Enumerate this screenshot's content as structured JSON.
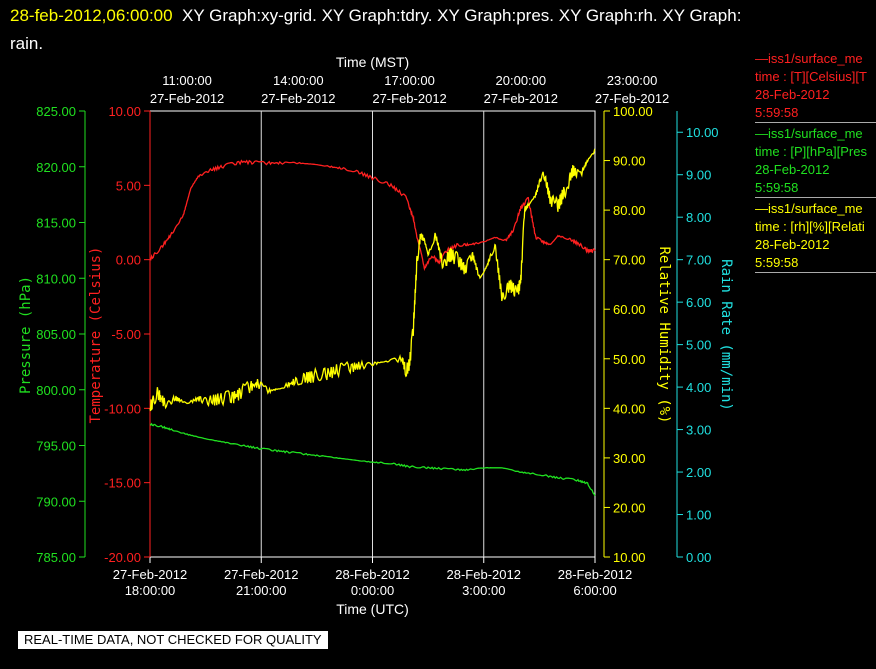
{
  "header": {
    "timestamp": "28-feb-2012,06:00:00",
    "graphs_line1": "XY Graph:xy-grid.  XY Graph:tdry.  XY Graph:pres.  XY Graph:rh.  XY Graph:",
    "graphs_line2": "rain."
  },
  "legend": [
    {
      "line1": "—iss1/surface_me",
      "line2": "time : [T][Celsius][T",
      "line3": "28-Feb-2012",
      "line4": "5:59:58",
      "color": "#ff2020"
    },
    {
      "line1": "—iss1/surface_me",
      "line2": "time : [P][hPa][Pres",
      "line3": "28-Feb-2012",
      "line4": "5:59:58",
      "color": "#20ff20"
    },
    {
      "line1": "—iss1/surface_me",
      "line2": "time : [rh][%][Relati",
      "line3": "28-Feb-2012",
      "line4": "5:59:58",
      "color": "#ffff00"
    }
  ],
  "footer": "REAL-TIME DATA, NOT CHECKED FOR QUALITY",
  "chart_data": {
    "type": "line",
    "top_axis_title": "Time (MST)",
    "bottom_axis_title": "Time (UTC)",
    "x_range_hours_utc": [
      0,
      12
    ],
    "top_ticks": [
      {
        "hour": 1,
        "line1": "11:00:00",
        "line2": "27-Feb-2012"
      },
      {
        "hour": 4,
        "line1": "14:00:00",
        "line2": "27-Feb-2012"
      },
      {
        "hour": 7,
        "line1": "17:00:00",
        "line2": "27-Feb-2012"
      },
      {
        "hour": 10,
        "line1": "20:00:00",
        "line2": "27-Feb-2012"
      },
      {
        "hour": 13,
        "line1": "23:00:00",
        "line2": "27-Feb-2012"
      }
    ],
    "bottom_ticks": [
      {
        "hour": 0,
        "line1": "27-Feb-2012",
        "line2": "18:00:00"
      },
      {
        "hour": 3,
        "line1": "27-Feb-2012",
        "line2": "21:00:00"
      },
      {
        "hour": 6,
        "line1": "28-Feb-2012",
        "line2": "0:00:00"
      },
      {
        "hour": 9,
        "line1": "28-Feb-2012",
        "line2": "3:00:00"
      },
      {
        "hour": 12,
        "line1": "28-Feb-2012",
        "line2": "6:00:00"
      }
    ],
    "grid_hours": [
      3,
      6,
      9
    ],
    "axes": {
      "pressure": {
        "label": "Pressure (hPa)",
        "color": "#20e020",
        "range": [
          785,
          825
        ],
        "ticks": [
          "785.00",
          "790.00",
          "795.00",
          "800.00",
          "805.00",
          "810.00",
          "815.00",
          "820.00",
          "825.00"
        ]
      },
      "temperature": {
        "label": "Temperature (Celsius)",
        "color": "#ff2020",
        "range": [
          -20,
          10
        ],
        "ticks": [
          "-20.00",
          "-15.00",
          "-10.00",
          "-5.00",
          "0.00",
          "5.00",
          "10.00"
        ]
      },
      "humidity": {
        "label": "Relative Humidity (%)",
        "color": "#ffff00",
        "range": [
          10,
          100
        ],
        "ticks": [
          "10.00",
          "20.00",
          "30.00",
          "40.00",
          "50.00",
          "60.00",
          "70.00",
          "80.00",
          "90.00",
          "100.00"
        ]
      },
      "rain": {
        "label": "Rain Rate (mm/min)",
        "color": "#20e0e0",
        "range": [
          0,
          10.5
        ],
        "ticks": [
          "0.00",
          "1.00",
          "2.00",
          "3.00",
          "4.00",
          "5.00",
          "6.00",
          "7.00",
          "8.00",
          "9.00",
          "10.00"
        ]
      }
    },
    "series": [
      {
        "name": "iss1/surface_me time : [T][Celsius][T",
        "axis": "temperature",
        "color": "#ff2020",
        "x": [
          0,
          0.3,
          0.6,
          0.9,
          1.1,
          1.3,
          1.6,
          2.0,
          2.5,
          3.0,
          3.5,
          4.0,
          4.5,
          5.0,
          5.5,
          6.0,
          6.5,
          6.9,
          7.1,
          7.2,
          7.3,
          7.4,
          7.6,
          7.8,
          8.0,
          8.3,
          8.6,
          9.0,
          9.3,
          9.6,
          9.8,
          10.0,
          10.2,
          10.4,
          10.6,
          10.8,
          11.0,
          11.3,
          11.6,
          11.8,
          12.0
        ],
        "y": [
          0.0,
          0.8,
          1.8,
          3.0,
          4.8,
          5.6,
          6.0,
          6.3,
          6.6,
          6.5,
          6.5,
          6.5,
          6.4,
          6.2,
          6.0,
          5.5,
          5.0,
          4.2,
          2.8,
          1.5,
          0.6,
          -0.6,
          0.3,
          -0.2,
          0.6,
          1.0,
          1.0,
          1.2,
          1.5,
          1.3,
          2.0,
          3.5,
          4.1,
          1.5,
          1.2,
          1.0,
          1.6,
          1.4,
          1.0,
          0.6,
          0.6
        ]
      },
      {
        "name": "iss1/surface_me time : [P][hPa][Pres",
        "axis": "pressure",
        "color": "#20e020",
        "x": [
          0,
          0.3,
          0.6,
          1.0,
          1.5,
          2.0,
          2.5,
          3.0,
          3.5,
          4.0,
          4.5,
          5.0,
          5.5,
          6.0,
          6.5,
          7.0,
          7.5,
          8.0,
          8.5,
          9.0,
          9.5,
          10.0,
          10.5,
          11.0,
          11.5,
          11.8,
          12.0
        ],
        "y": [
          796.9,
          796.7,
          796.4,
          796.0,
          795.6,
          795.3,
          795.0,
          794.7,
          794.5,
          794.3,
          794.1,
          793.9,
          793.7,
          793.5,
          793.4,
          793.1,
          793.0,
          792.9,
          792.8,
          793.0,
          793.0,
          792.6,
          792.4,
          792.1,
          791.9,
          791.6,
          790.5
        ]
      },
      {
        "name": "iss1/surface_me time : [rh][%][Relati",
        "axis": "humidity",
        "color": "#ffff00",
        "x": [
          0,
          0.2,
          0.4,
          0.7,
          1.0,
          1.3,
          1.6,
          2.0,
          2.3,
          2.6,
          2.9,
          3.2,
          3.5,
          3.8,
          4.1,
          4.4,
          4.8,
          5.2,
          5.6,
          6.0,
          6.4,
          6.8,
          6.9,
          7.0,
          7.1,
          7.2,
          7.3,
          7.4,
          7.5,
          7.7,
          7.9,
          8.1,
          8.3,
          8.5,
          8.7,
          8.9,
          9.1,
          9.3,
          9.5,
          9.7,
          9.9,
          10.0,
          10.1,
          10.2,
          10.4,
          10.6,
          10.8,
          11.0,
          11.2,
          11.4,
          11.6,
          11.8,
          12.0
        ],
        "y": [
          40,
          43,
          41,
          42,
          41,
          42,
          41.5,
          42,
          42.5,
          44,
          45,
          43.5,
          44,
          45,
          46,
          46.5,
          47,
          48,
          48.5,
          49,
          49.5,
          50,
          47.5,
          49,
          56,
          70,
          75,
          74,
          71,
          75,
          69,
          71,
          70,
          68,
          71,
          66,
          69,
          73,
          62,
          65,
          63,
          66,
          80,
          81,
          83,
          88,
          82,
          81,
          84,
          88,
          87,
          90,
          92
        ]
      }
    ]
  }
}
